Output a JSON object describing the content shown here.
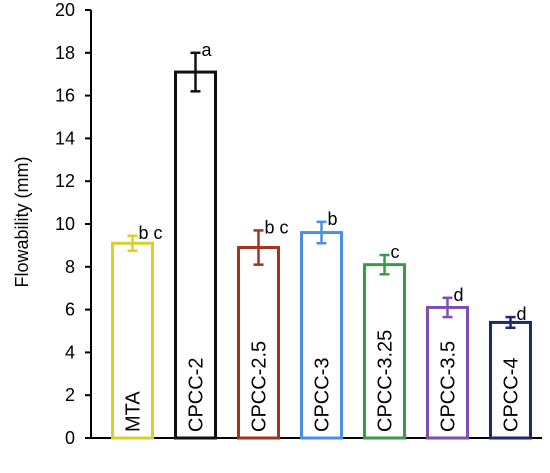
{
  "chart_data": {
    "type": "bar",
    "ylabel": "Flowability (mm)",
    "xlabel": "",
    "title": "",
    "ylim": [
      0,
      20
    ],
    "yticks": [
      0,
      2,
      4,
      6,
      8,
      10,
      12,
      14,
      16,
      18,
      20
    ],
    "grid": false,
    "legend": "none",
    "categories": [
      "MTA",
      "CPCC-2",
      "CPCC-2.5",
      "CPCC-3",
      "CPCC-3.25",
      "CPCC-3.5",
      "CPCC-4"
    ],
    "values": [
      9.1,
      17.1,
      8.9,
      9.6,
      8.1,
      6.1,
      5.4
    ],
    "errors": [
      0.35,
      0.9,
      0.8,
      0.5,
      0.45,
      0.45,
      0.25
    ],
    "significance_labels": [
      "b c",
      "a",
      "b c",
      "b",
      "c",
      "d",
      "d"
    ],
    "colors": [
      "#d9cf2a",
      "#111111",
      "#a3341c",
      "#4a90e2",
      "#3b9a4a",
      "#7e4fb0",
      "#1b2a73"
    ]
  }
}
